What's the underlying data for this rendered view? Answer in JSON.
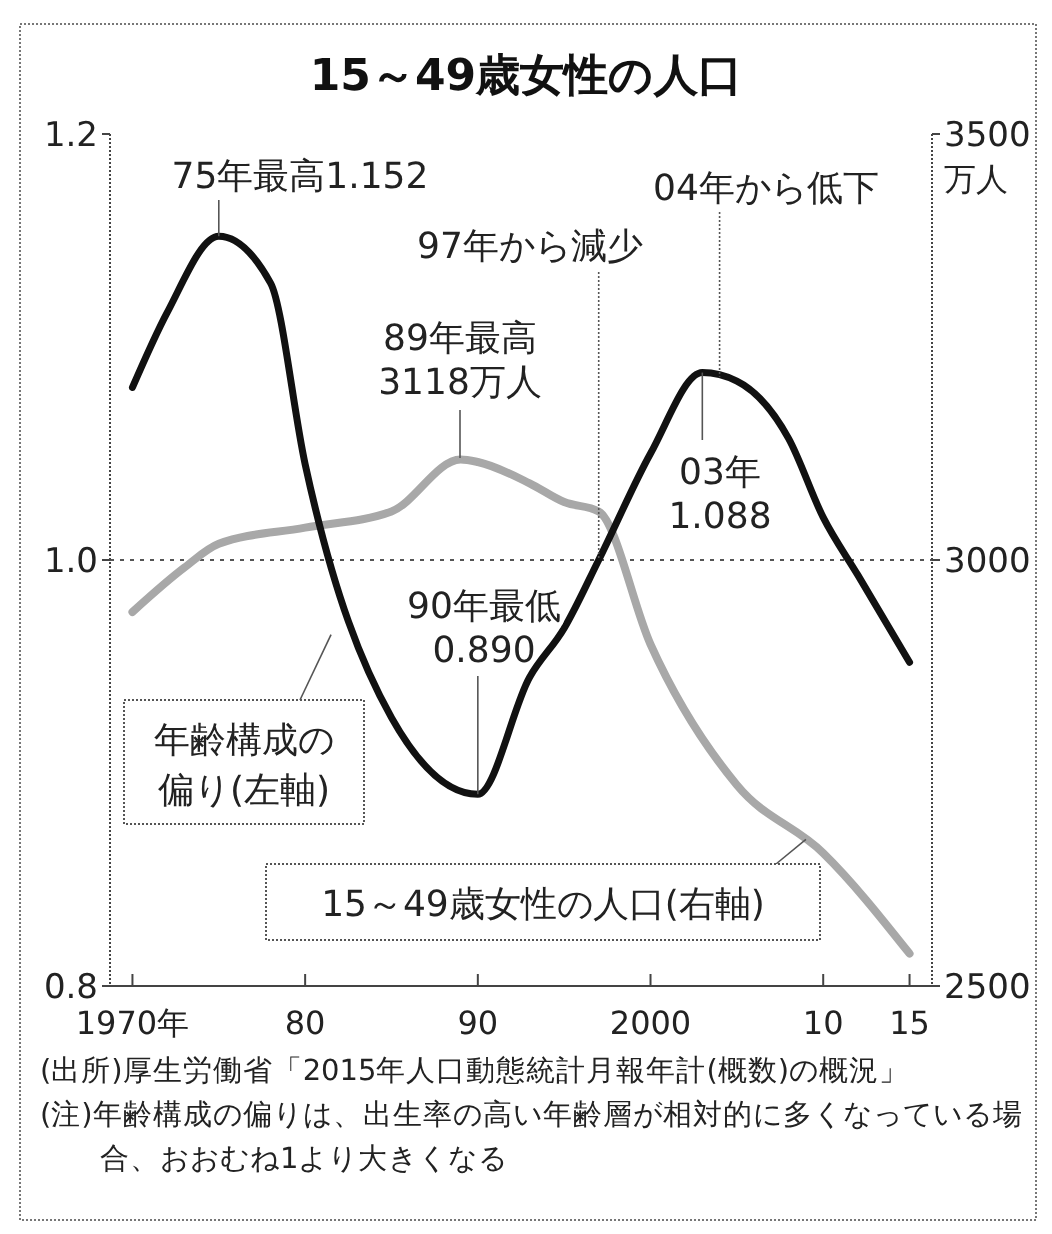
{
  "chart_data": {
    "type": "line",
    "title": "15～49歳女性の人口",
    "y2label": "万人",
    "xlim": [
      1968.7,
      2016.3
    ],
    "xticks": [
      {
        "value": 1970,
        "label": "1970年"
      },
      {
        "value": 1980,
        "label": "80"
      },
      {
        "value": 1990,
        "label": "90"
      },
      {
        "value": 2000,
        "label": "2000"
      },
      {
        "value": 2010,
        "label": "10"
      },
      {
        "value": 2015,
        "label": "15"
      }
    ],
    "ylim": [
      0.8,
      1.2
    ],
    "yticks": [
      0.8,
      {
        "value": 1.0,
        "label": "1.0"
      },
      1.2
    ],
    "y2lim": [
      2500,
      3500
    ],
    "y2ticks": [
      2500,
      3000,
      3500
    ],
    "series": [
      {
        "name": "15～49歳女性の人口(右軸)",
        "color": "#a8a8a8",
        "axis": "y2",
        "x": [
          1970,
          1973,
          1975,
          1980,
          1985,
          1989,
          1990,
          1993,
          1995,
          1997,
          2000,
          2005,
          2010,
          2015
        ],
        "values": [
          2939,
          2991,
          3019,
          3038,
          3057,
          3118,
          3115,
          3090,
          3068,
          3057,
          2901,
          2736,
          2656,
          2538
        ]
      },
      {
        "name": "年齢構成の偏り(左軸)",
        "color": "#111111",
        "x": [
          1970,
          1972,
          1975,
          1978,
          1980,
          1985,
          1990,
          1993,
          1995,
          1997,
          2000,
          2003,
          2005,
          2008,
          2010,
          2012,
          2015
        ],
        "values": [
          1.081,
          1.116,
          1.152,
          1.13,
          1.045,
          0.926,
          0.89,
          0.945,
          0.968,
          1.0,
          1.05,
          1.088,
          1.084,
          1.057,
          1.02,
          0.993,
          0.952
        ]
      }
    ],
    "ref_lines": [
      {
        "axis": "y",
        "value": 1.0,
        "line_style": "dotted",
        "color": "#555555"
      }
    ],
    "grid": false,
    "marker": "none",
    "line_style": "solid",
    "annotations": [
      {
        "text": "75年最高1.152",
        "x": 1975,
        "y": 1.152
      },
      "89年最高\n3118万人",
      {
        "text": "97年から減少",
        "x": 1997,
        "y": 1.0
      },
      {
        "text": "04年から低下",
        "x": 2004,
        "y": 1.086
      },
      {
        "text": "03年\n1.088",
        "x": 2003,
        "y": 1.088
      },
      {
        "text": "90年最低\n0.890",
        "x": 1990,
        "y": 0.89
      },
      "(出所)厚生労働省「2015年人口動態統計月報年計(概数)の概況」",
      "(注)年齢構成の偏りは、出生率の高い年齢層が相対的に多くなっている場合、おおむね1より大きくなる"
    ]
  }
}
